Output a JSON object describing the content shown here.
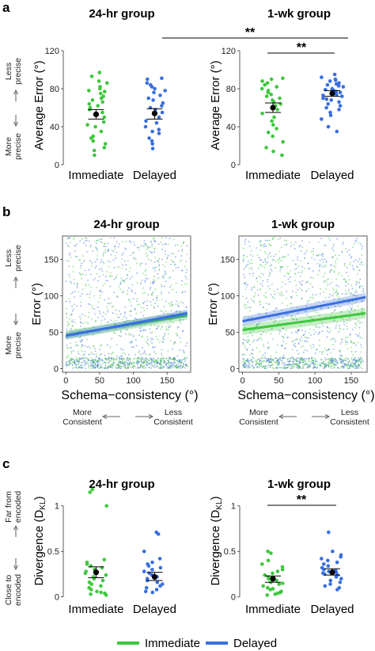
{
  "colors": {
    "immediate": "#3ec73e",
    "delayed": "#3a6fe0",
    "mean": "#000000"
  },
  "legend": {
    "items": [
      {
        "label": "Immediate",
        "color": "#3ec73e"
      },
      {
        "label": "Delayed",
        "color": "#3a6fe0"
      }
    ]
  },
  "panels": {
    "a": {
      "label": "a",
      "side_top": [
        "Less",
        "precise"
      ],
      "side_bottom": [
        "More",
        "precise"
      ],
      "sig_outer": "**",
      "sig_inner": "**"
    },
    "b": {
      "label": "b",
      "side_top": [
        "Less",
        "precise"
      ],
      "side_bottom": [
        "More",
        "precise"
      ],
      "consistency_left": [
        "More",
        "Consistent"
      ],
      "consistency_right": [
        "Less",
        "Consistent"
      ]
    },
    "c": {
      "label": "c",
      "side_top": [
        "Far from",
        "encoded"
      ],
      "side_bottom": [
        "Close to",
        "encoded"
      ],
      "sig": "**"
    }
  },
  "chart_data": [
    {
      "id": "a-24hr",
      "type": "scatter",
      "title": "24-hr group",
      "ylabel": "Average Error (°)",
      "ylim": [
        0,
        125
      ],
      "yticks": [
        0,
        40,
        80,
        120
      ],
      "categories": [
        "Immediate",
        "Delayed"
      ],
      "series": [
        {
          "name": "Immediate",
          "mean": 53,
          "se_low": 48,
          "se_high": 58,
          "values": [
            97,
            93,
            88,
            86,
            82,
            80,
            78,
            77,
            75,
            72,
            70,
            68,
            66,
            64,
            62,
            60,
            58,
            55,
            50,
            45,
            42,
            40,
            35,
            30,
            28,
            25,
            22,
            18,
            15,
            10
          ]
        },
        {
          "name": "Delayed",
          "mean": 54,
          "se_low": 48,
          "se_high": 59,
          "values": [
            91,
            90,
            86,
            84,
            82,
            80,
            78,
            76,
            73,
            70,
            68,
            65,
            62,
            60,
            58,
            55,
            50,
            46,
            44,
            40,
            37,
            35,
            33,
            28,
            25,
            22,
            17
          ]
        }
      ]
    },
    {
      "id": "a-1wk",
      "type": "scatter",
      "title": "1-wk group",
      "ylabel": "Average Error (°)",
      "ylim": [
        0,
        125
      ],
      "yticks": [
        0,
        40,
        80,
        120
      ],
      "categories": [
        "Immediate",
        "Delayed"
      ],
      "series": [
        {
          "name": "Immediate",
          "mean": 60,
          "se_low": 55,
          "se_high": 65,
          "values": [
            91,
            90,
            88,
            86,
            84,
            82,
            80,
            78,
            76,
            74,
            72,
            70,
            68,
            66,
            64,
            62,
            58,
            54,
            50,
            46,
            42,
            38,
            34,
            30,
            24,
            18,
            14,
            10
          ]
        },
        {
          "name": "Delayed",
          "mean": 75,
          "se_low": 72,
          "se_high": 78,
          "values": [
            95,
            92,
            90,
            89,
            88,
            86,
            85,
            84,
            83,
            82,
            80,
            79,
            78,
            77,
            76,
            75,
            74,
            73,
            72,
            70,
            69,
            68,
            66,
            64,
            62,
            60,
            58,
            55,
            52,
            48,
            40,
            35
          ]
        }
      ]
    },
    {
      "id": "b-24hr",
      "type": "scatter",
      "title": "24-hr group",
      "xlabel": "Schema−consistency (°)",
      "ylabel": "Error (°)",
      "xlim": [
        -5,
        185
      ],
      "ylim": [
        -5,
        182
      ],
      "xticks": [
        0,
        50,
        100,
        150
      ],
      "yticks": [
        0,
        50,
        100,
        150
      ],
      "fits": [
        {
          "name": "Immediate",
          "x": [
            0,
            180
          ],
          "y": [
            46,
            73
          ],
          "ci": 6
        },
        {
          "name": "Delayed",
          "x": [
            0,
            180
          ],
          "y": [
            45,
            76
          ],
          "ci": 5
        }
      ]
    },
    {
      "id": "b-1wk",
      "type": "scatter",
      "title": "1-wk group",
      "xlabel": "Schema−consistency (°)",
      "ylabel": "Error (°)",
      "xlim": [
        -5,
        172
      ],
      "ylim": [
        -5,
        182
      ],
      "xticks": [
        0,
        50,
        100,
        150
      ],
      "yticks": [
        0,
        50,
        100,
        150
      ],
      "fits": [
        {
          "name": "Immediate",
          "x": [
            0,
            170
          ],
          "y": [
            53,
            76
          ],
          "ci": 7
        },
        {
          "name": "Delayed",
          "x": [
            0,
            170
          ],
          "y": [
            65,
            98
          ],
          "ci": 6
        }
      ]
    },
    {
      "id": "c-24hr",
      "type": "scatter",
      "title": "24-hr group",
      "ylabel": "Divergence (D_KL)",
      "ylim": [
        -0.02,
        1.25
      ],
      "yticks": [
        0,
        0.5,
        1
      ],
      "categories": [
        "Immediate",
        "Delayed"
      ],
      "series": [
        {
          "name": "Immediate",
          "mean": 0.27,
          "se_low": 0.21,
          "se_high": 0.33,
          "values": [
            1.18,
            1.15,
            1.0,
            0.41,
            0.38,
            0.36,
            0.34,
            0.32,
            0.3,
            0.28,
            0.26,
            0.24,
            0.22,
            0.2,
            0.18,
            0.16,
            0.14,
            0.12,
            0.1,
            0.08,
            0.06,
            0.05,
            0.04,
            0.03,
            0.02
          ]
        },
        {
          "name": "Delayed",
          "mean": 0.22,
          "se_low": 0.18,
          "se_high": 0.27,
          "values": [
            0.71,
            0.69,
            0.5,
            0.42,
            0.38,
            0.36,
            0.34,
            0.32,
            0.3,
            0.28,
            0.26,
            0.24,
            0.22,
            0.2,
            0.18,
            0.16,
            0.14,
            0.12,
            0.1,
            0.08,
            0.06,
            0.05
          ]
        }
      ]
    },
    {
      "id": "c-1wk",
      "type": "scatter",
      "title": "1-wk group",
      "ylabel": "Divergence (D_KL)",
      "ylim": [
        -0.02,
        1.25
      ],
      "yticks": [
        0,
        0.5,
        1
      ],
      "categories": [
        "Immediate",
        "Delayed"
      ],
      "series": [
        {
          "name": "Immediate",
          "mean": 0.2,
          "se_low": 0.16,
          "se_high": 0.23,
          "values": [
            0.5,
            0.48,
            0.4,
            0.36,
            0.33,
            0.3,
            0.28,
            0.26,
            0.24,
            0.22,
            0.2,
            0.18,
            0.16,
            0.15,
            0.14,
            0.12,
            0.1,
            0.09,
            0.08,
            0.06,
            0.05,
            0.04,
            0.03,
            0.02
          ]
        },
        {
          "name": "Delayed",
          "mean": 0.27,
          "se_low": 0.24,
          "se_high": 0.31,
          "values": [
            0.71,
            0.5,
            0.46,
            0.44,
            0.42,
            0.4,
            0.38,
            0.36,
            0.34,
            0.32,
            0.3,
            0.29,
            0.28,
            0.27,
            0.26,
            0.25,
            0.24,
            0.22,
            0.2,
            0.18,
            0.16,
            0.14,
            0.12,
            0.1,
            0.08
          ]
        }
      ]
    }
  ]
}
